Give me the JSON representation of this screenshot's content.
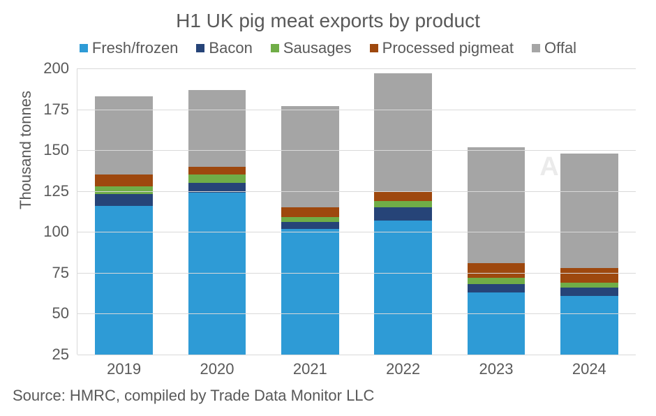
{
  "chart": {
    "type": "stacked-bar",
    "title": "H1 UK pig meat exports by product",
    "title_fontsize": 28,
    "label_fontsize": 22,
    "background_color": "#ffffff",
    "grid_color": "#d9d9d9",
    "text_color": "#595959",
    "ylabel": "Thousand tonnes",
    "ylim_min": 25,
    "ylim_max": 200,
    "ytick_step": 25,
    "yticks": [
      25,
      50,
      75,
      100,
      125,
      150,
      175,
      200
    ],
    "categories": [
      "2019",
      "2020",
      "2021",
      "2022",
      "2023",
      "2024"
    ],
    "series": [
      {
        "name": "Fresh/frozen",
        "color": "#2e9bd6",
        "values": [
          116,
          124,
          102,
          107,
          63,
          61
        ]
      },
      {
        "name": "Bacon",
        "color": "#264478",
        "values": [
          7,
          6,
          4,
          8,
          5,
          5
        ]
      },
      {
        "name": "Sausages",
        "color": "#70ad47",
        "values": [
          5,
          5,
          3,
          4,
          4,
          3
        ]
      },
      {
        "name": "Processed pigmeat",
        "color": "#9e480e",
        "values": [
          7,
          5,
          6,
          6,
          9,
          9
        ]
      },
      {
        "name": "Offal",
        "color": "#a5a5a5",
        "values": [
          48,
          47,
          62,
          72,
          71,
          70
        ]
      }
    ],
    "bar_width": 0.62,
    "aspect_ratio": "940x596",
    "watermark": "AHDB",
    "source": "Source: HMRC, compiled by Trade Data Monitor LLC"
  }
}
